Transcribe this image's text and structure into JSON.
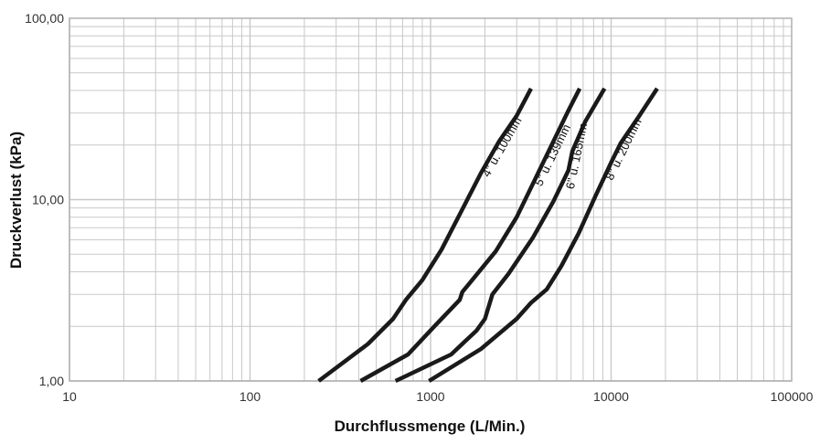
{
  "chart_data": {
    "type": "line",
    "title": "",
    "xlabel": "Durchflussmenge (L/Min.)",
    "ylabel": "Druckverlust (kPa)",
    "x_scale": "log",
    "y_scale": "log",
    "xlim": [
      10,
      100000
    ],
    "ylim": [
      1,
      100
    ],
    "grid": true,
    "legend": "none",
    "x_ticks": [
      "10",
      "100",
      "1000",
      "10000",
      "100000"
    ],
    "y_ticks": [
      "1,00",
      "10,00",
      "100,00"
    ],
    "colors": {
      "line": "#1a1a1a",
      "grid": "#c8c8c8",
      "frame": "#b0b0b0"
    },
    "series": [
      {
        "name": "4\" u. 100mm",
        "points": [
          [
            240,
            1.0
          ],
          [
            450,
            1.6
          ],
          [
            620,
            2.2
          ],
          [
            730,
            2.8
          ],
          [
            900,
            3.6
          ],
          [
            1150,
            5.3
          ],
          [
            1450,
            8.3
          ],
          [
            1900,
            14
          ],
          [
            2400,
            21
          ],
          [
            3000,
            29
          ],
          [
            3600,
            41
          ]
        ]
      },
      {
        "name": "5\" u. 139mm",
        "points": [
          [
            410,
            1.0
          ],
          [
            750,
            1.4
          ],
          [
            1050,
            2.0
          ],
          [
            1450,
            2.8
          ],
          [
            1500,
            3.1
          ],
          [
            1700,
            3.6
          ],
          [
            2300,
            5.2
          ],
          [
            3000,
            8.0
          ],
          [
            3800,
            13
          ],
          [
            4800,
            21
          ],
          [
            5800,
            31
          ],
          [
            6700,
            41
          ]
        ]
      },
      {
        "name": "6\" u. 165mm",
        "points": [
          [
            640,
            1.0
          ],
          [
            1300,
            1.4
          ],
          [
            1800,
            1.9
          ],
          [
            2000,
            2.2
          ],
          [
            2200,
            3.0
          ],
          [
            2700,
            3.9
          ],
          [
            3700,
            6.2
          ],
          [
            4800,
            9.8
          ],
          [
            5800,
            14.5
          ],
          [
            6100,
            18.5
          ],
          [
            7200,
            27
          ],
          [
            9200,
            41
          ]
        ]
      },
      {
        "name": "8\" u. 200mm",
        "points": [
          [
            980,
            1.0
          ],
          [
            1900,
            1.5
          ],
          [
            3000,
            2.2
          ],
          [
            3600,
            2.7
          ],
          [
            4400,
            3.2
          ],
          [
            5300,
            4.3
          ],
          [
            6600,
            6.5
          ],
          [
            8200,
            10.5
          ],
          [
            10000,
            16
          ],
          [
            11300,
            20.5
          ],
          [
            14000,
            28
          ],
          [
            18000,
            41
          ]
        ]
      }
    ]
  }
}
